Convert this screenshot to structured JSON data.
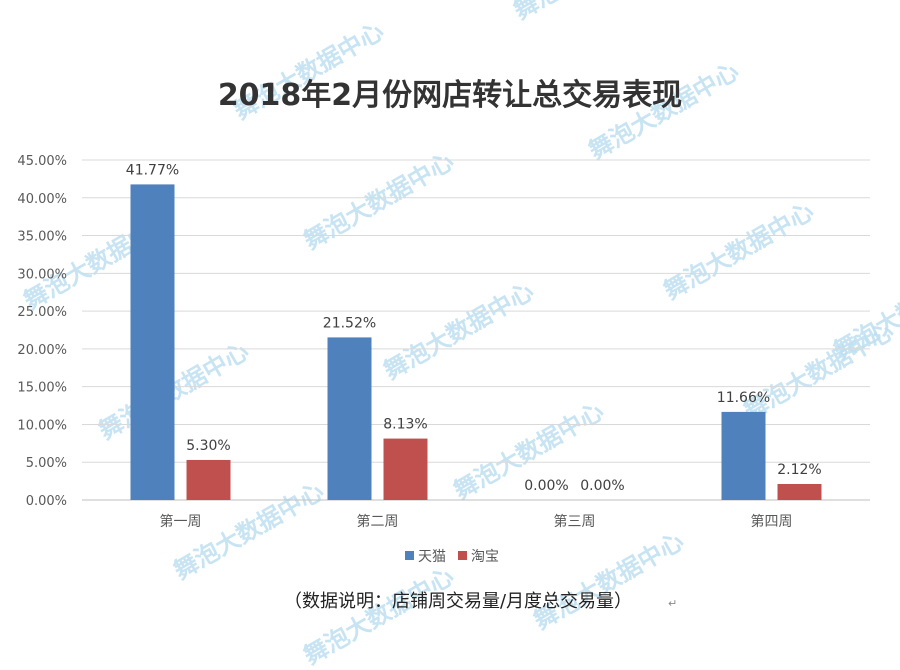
{
  "chart_data": {
    "type": "bar",
    "title": "2018年2月份网店转让总交易表现",
    "categories": [
      "第一周",
      "第二周",
      "第三周",
      "第四周"
    ],
    "series": [
      {
        "name": "天猫",
        "color": "#4f81bd",
        "values": [
          41.77,
          21.52,
          0.0,
          11.66
        ],
        "labels": [
          "41.77%",
          "21.52%",
          "0.00%",
          "11.66%"
        ]
      },
      {
        "name": "淘宝",
        "color": "#c0504d",
        "values": [
          5.3,
          8.13,
          0.0,
          2.12
        ],
        "labels": [
          "5.30%",
          "8.13%",
          "0.00%",
          "2.12%"
        ]
      }
    ],
    "ylim": [
      0,
      45
    ],
    "yticks": [
      "0.00%",
      "5.00%",
      "10.00%",
      "15.00%",
      "20.00%",
      "25.00%",
      "30.00%",
      "35.00%",
      "40.00%",
      "45.00%"
    ],
    "grid": true,
    "legend_position": "bottom"
  },
  "note": "（数据说明：店铺周交易量/月度总交易量）",
  "return_mark": "↵",
  "watermark": "舞泡大数据中心"
}
